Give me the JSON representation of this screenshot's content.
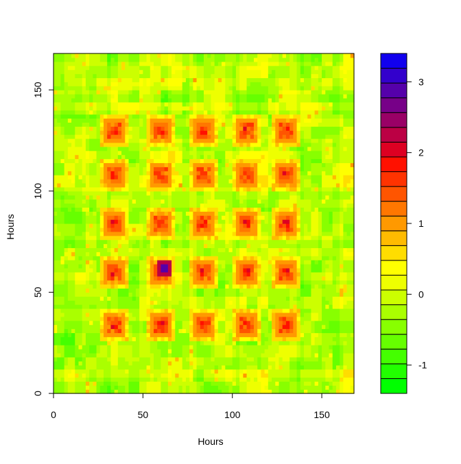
{
  "chart_data": {
    "type": "heatmap",
    "title": "",
    "xlabel": "Hours",
    "ylabel": "Hours",
    "xlim": [
      0,
      168
    ],
    "ylim": [
      0,
      168
    ],
    "x_ticks": [
      0,
      50,
      100,
      150
    ],
    "y_ticks": [
      0,
      50,
      100,
      150
    ],
    "grid": false,
    "legend": "right colorbar",
    "value_range": [
      -1.4,
      3.4
    ],
    "colorbar_ticks": [
      -1,
      0,
      1,
      2,
      3
    ],
    "colorbar_colors": [
      "#00ff00",
      "#22ff00",
      "#44ff00",
      "#66ff00",
      "#88ff00",
      "#aaff00",
      "#ccff00",
      "#eeff00",
      "#ffff00",
      "#ffdd00",
      "#ffbb00",
      "#ff9900",
      "#ff7700",
      "#ff5500",
      "#ff3300",
      "#ff1100",
      "#dd0022",
      "#bb0044",
      "#990066",
      "#770088",
      "#5500aa",
      "#3300cc",
      "#1100ee"
    ],
    "block_centers": [
      34,
      60,
      84,
      108,
      130
    ],
    "background_value": -0.1,
    "hotspot": {
      "x": 62,
      "y": 62,
      "value": 3.2
    }
  }
}
